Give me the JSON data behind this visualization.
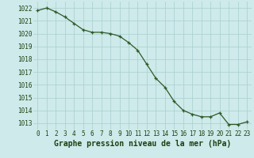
{
  "x": [
    0,
    1,
    2,
    3,
    4,
    5,
    6,
    7,
    8,
    9,
    10,
    11,
    12,
    13,
    14,
    15,
    16,
    17,
    18,
    19,
    20,
    21,
    22,
    23
  ],
  "y": [
    1021.8,
    1022.0,
    1021.7,
    1021.3,
    1020.8,
    1020.3,
    1020.1,
    1020.1,
    1020.0,
    1019.8,
    1019.3,
    1018.7,
    1017.6,
    1016.5,
    1015.8,
    1014.7,
    1014.0,
    1013.7,
    1013.5,
    1013.5,
    1013.8,
    1012.9,
    1012.9,
    1013.1
  ],
  "line_color": "#2d5a27",
  "marker": "+",
  "bg_color": "#ceeaea",
  "grid_color": "#a8cece",
  "xlabel": "Graphe pression niveau de la mer (hPa)",
  "xlabel_color": "#1a4010",
  "tick_color": "#1a4010",
  "ylim_min": 1012.5,
  "ylim_max": 1022.5,
  "xlim_min": -0.5,
  "xlim_max": 23.5,
  "yticks": [
    1013,
    1014,
    1015,
    1016,
    1017,
    1018,
    1019,
    1020,
    1021,
    1022
  ],
  "xticks": [
    0,
    1,
    2,
    3,
    4,
    5,
    6,
    7,
    8,
    9,
    10,
    11,
    12,
    13,
    14,
    15,
    16,
    17,
    18,
    19,
    20,
    21,
    22,
    23
  ],
  "fontsize_tick": 5.5,
  "fontsize_xlabel": 7.0,
  "linewidth": 0.9,
  "markersize": 3.5,
  "markeredgewidth": 0.9
}
